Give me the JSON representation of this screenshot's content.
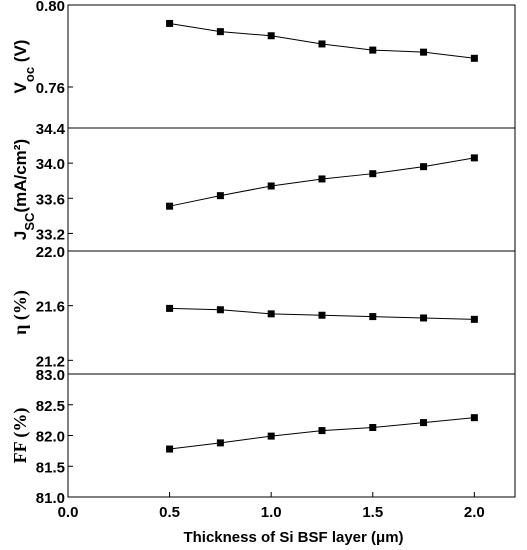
{
  "chart_data": [
    {
      "type": "line",
      "panel": "voc",
      "ylabel_main": "V",
      "ylabel_sub": "oc",
      "ylabel_unit": " (V)",
      "ylim": [
        0.74,
        0.8
      ],
      "yticks": [
        0.76,
        0.8
      ],
      "ytick_labels": [
        "0.76",
        "0.80"
      ],
      "xlim": [
        0.0,
        2.2
      ],
      "grid": false,
      "series": [
        {
          "x": [
            0.5,
            0.75,
            1.0,
            1.25,
            1.5,
            1.75,
            2.0
          ],
          "y": [
            0.791,
            0.787,
            0.785,
            0.781,
            0.778,
            0.777,
            0.774
          ]
        }
      ]
    },
    {
      "type": "line",
      "panel": "jsc",
      "ylabel_main": "J",
      "ylabel_sub": "SC",
      "ylabel_unit": "(mA/cm²)",
      "ylim": [
        33.0,
        34.4
      ],
      "yticks": [
        33.2,
        33.6,
        34.0,
        34.4
      ],
      "ytick_labels": [
        "33.2",
        "33.6",
        "34.0",
        "34.4"
      ],
      "xlim": [
        0.0,
        2.2
      ],
      "grid": false,
      "series": [
        {
          "x": [
            0.5,
            0.75,
            1.0,
            1.25,
            1.5,
            1.75,
            2.0
          ],
          "y": [
            33.51,
            33.63,
            33.74,
            33.82,
            33.88,
            33.96,
            34.06
          ]
        }
      ]
    },
    {
      "type": "line",
      "panel": "eta",
      "ylabel_main": "η (%)",
      "ylim": [
        21.1,
        22.0
      ],
      "yticks": [
        21.2,
        21.6,
        22.0
      ],
      "ytick_labels": [
        "21.2",
        "21.6",
        "22.0"
      ],
      "xlim": [
        0.0,
        2.2
      ],
      "grid": false,
      "series": [
        {
          "x": [
            0.5,
            0.75,
            1.0,
            1.25,
            1.5,
            1.75,
            2.0
          ],
          "y": [
            21.58,
            21.57,
            21.54,
            21.53,
            21.52,
            21.51,
            21.5
          ]
        }
      ]
    },
    {
      "type": "line",
      "panel": "ff",
      "ylabel_main": "FF (%)",
      "ylim": [
        81.0,
        83.0
      ],
      "yticks": [
        81.0,
        81.5,
        82.0,
        82.5,
        83.0
      ],
      "ytick_labels": [
        "81.0",
        "81.5",
        "82.0",
        "82.5",
        "83.0"
      ],
      "xlim": [
        0.0,
        2.2
      ],
      "xticks": [
        0.0,
        0.5,
        1.0,
        1.5,
        2.0
      ],
      "xtick_labels": [
        "0.0",
        "0.5",
        "1.0",
        "1.5",
        "2.0"
      ],
      "xlabel": "Thickness of Si BSF layer (μm)",
      "grid": false,
      "series": [
        {
          "x": [
            0.5,
            0.75,
            1.0,
            1.25,
            1.5,
            1.75,
            2.0
          ],
          "y": [
            81.78,
            81.88,
            81.99,
            82.08,
            82.13,
            82.21,
            82.29
          ]
        }
      ]
    }
  ]
}
